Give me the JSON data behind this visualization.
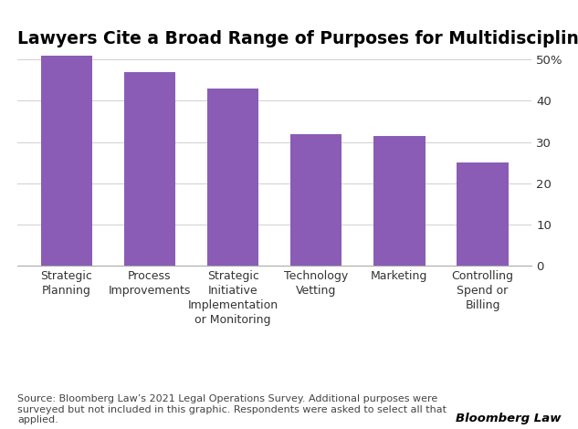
{
  "title": "Lawyers Cite a Broad Range of Purposes for Multidisciplinary Teams",
  "categories": [
    "Strategic\nPlanning",
    "Process\nImprovements",
    "Strategic\nInitiative\nImplementation\nor Monitoring",
    "Technology\nVetting",
    "Marketing",
    "Controlling\nSpend or\nBilling"
  ],
  "values": [
    51,
    47,
    43,
    32,
    31.5,
    25
  ],
  "bar_color": "#8B5CB5",
  "yticks": [
    0,
    10,
    20,
    30,
    40,
    50
  ],
  "ytick_labels": [
    "0",
    "10",
    "20",
    "30",
    "40",
    "50%"
  ],
  "ylim": [
    0,
    54
  ],
  "source_text": "Source: Bloomberg Law’s 2021 Legal Operations Survey. Additional purposes were\nsurveyed but not included in this graphic. Respondents were asked to select all that\napplied.",
  "brand_text": "Bloomberg Law",
  "background_color": "#ffffff",
  "title_fontsize": 13.5,
  "tick_fontsize": 9.5,
  "xtick_fontsize": 9,
  "source_fontsize": 8,
  "brand_fontsize": 9.5
}
